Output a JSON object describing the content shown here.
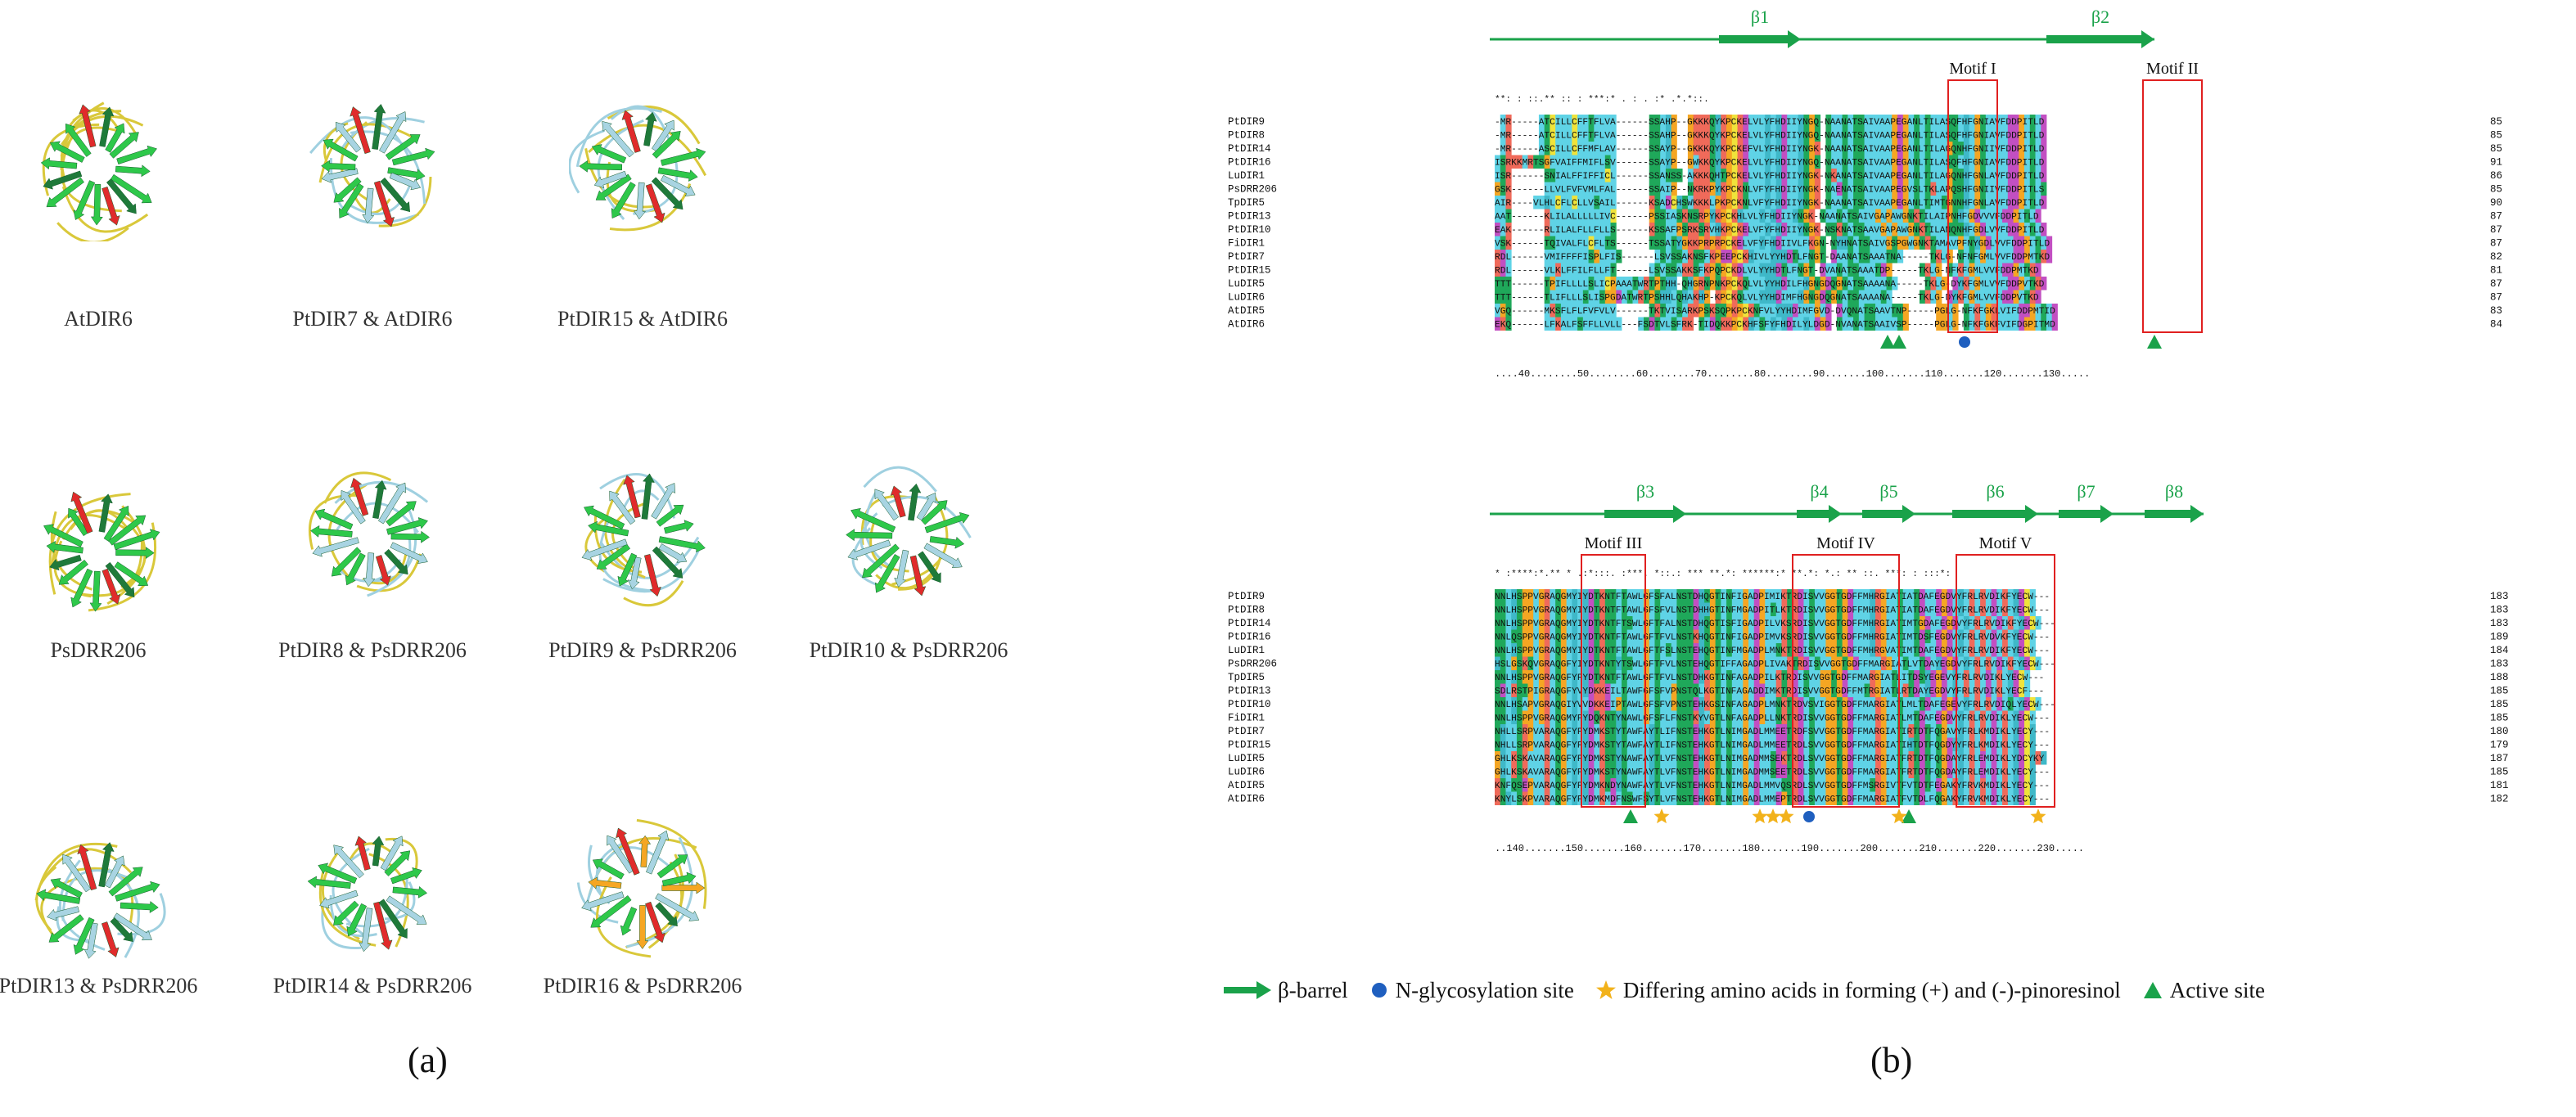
{
  "panel_a": {
    "letter": "(a)",
    "structures": [
      {
        "label": "AtDIR6",
        "palette": "single"
      },
      {
        "label": "PtDIR7 & AtDIR6",
        "palette": "overlay"
      },
      {
        "label": "PtDIR15 & AtDIR6",
        "palette": "overlay"
      },
      {
        "label": "PsDRR206",
        "palette": "single"
      },
      {
        "label": "PtDIR8 & PsDRR206",
        "palette": "overlay"
      },
      {
        "label": "PtDIR9 & PsDRR206",
        "palette": "overlay"
      },
      {
        "label": "PtDIR10 & PsDRR206",
        "palette": "overlay"
      },
      {
        "label": "PtDIR13 & PsDRR206",
        "palette": "overlay"
      },
      {
        "label": "PtDIR14 & PsDRR206",
        "palette": "overlay"
      },
      {
        "label": "PtDIR16 & PsDRR206",
        "palette": "orange"
      }
    ]
  },
  "panel_b": {
    "letter": "(b)",
    "block1": {
      "strands": [
        {
          "name": "β1"
        },
        {
          "name": "β2"
        }
      ],
      "motifs": [
        {
          "name": "Motif I"
        },
        {
          "name": "Motif II"
        }
      ],
      "conservation": "**:  : ::.** ::      :   ***:*    .   :   .  :*  .*.*::.",
      "rows": [
        {
          "name": "PtDIR9",
          "seq": "-MR-----ATCILLCFFTFLVA------SSAHP--GKKKQYKPCKELVLYFHDIIYNGQ-NAANATSAIVAAPEGANLTILASQFHFGNIAVFDDPITLD",
          "end": "85"
        },
        {
          "name": "PtDIR8",
          "seq": "-MR-----ATCILLCFFTFLVA------SSAHP--GKKKQYKPCKELVLYFHDIIYNGQ-NAANATSAIVAAPEGANLTILASQFHFGNIAVFDDPITLD",
          "end": "85"
        },
        {
          "name": "PtDIR14",
          "seq": "-MR-----ASCILLCFFMFLAV------SSAYP--GKKKQYKPCKEFVLYFHDIIYNGK-NAANATSAIVAAPEGANLTILAGQNHFGNIIVFDDPITLD",
          "end": "85"
        },
        {
          "name": "PtDIR16",
          "seq": "ISRKKMRTSGFVAIFFMIFLSV------SSAYP--GWKKQYKPCKELVLYFHDIIYNGQ-NAANATSAIVAAPEGANLTILASQFHFGNIAVFDDPITLD",
          "end": "91"
        },
        {
          "name": "LuDIR1",
          "seq": "ISR------SNIALFFIFFICL------SSANSS-AKKKQHTPCKELVLYFHDIIYNGK-NKANATSAIVAAPEGANLTILAGQNHFGNLAVFDDPITLD",
          "end": "86"
        },
        {
          "name": "PsDRR206",
          "seq": "GSK------LLVLFVFVMLFAL------SSAIP--NKRKPYKPCKNLVFYFHDIIYNGK-NAENATSAIVAAPEGVSLTKLAPQSHFGNIIVFDDPITLS",
          "end": "85"
        },
        {
          "name": "TpDIR5",
          "seq": "AIR----VLHLCFLCLLVSAIL------KSADCHSWKKKLPKPCKNLVFYFHDIIYNGK-NAANATSAIVAAPEGANLTIMTGNNHFGNLAVFDDPITLD",
          "end": "90"
        },
        {
          "name": "PtDIR13",
          "seq": "AAT------KLILALLLLLIVC------PSSIASKNSRPYKPCKHLVLYFHDIIYNGK-NAANATSAIVGAPAWGNKTILAIPNHFGDVVVFDDPITLD",
          "end": "87"
        },
        {
          "name": "PtDIR10",
          "seq": "EAK------RLILALFLLFLLS------KSSAFPSRKSRVHKPCKELVFYFHDIIYNGK-NSKNATSAAVGAPAWGNKTILANQNHFGDLVVFDDPITLD",
          "end": "87"
        },
        {
          "name": "FiDIR1",
          "seq": "VSK------TQIVALFLCFLTS------TSSATYGKKPRPRPCKELVFYFHDIIVLFKGN-NYHNATSAIVGSPGWGNKTAMAVPFNYGDLVVFDDPITLD",
          "end": "87"
        },
        {
          "name": "PtDIR7",
          "seq": "RDL------VMIFFFFISPLFIS------LSVSSAKNSFKPEEPCKHIVLYYHDTLFNGT-DAANATSAAATNA-----TKLG-NFNFGMLVVFDDPMTKD",
          "end": "82"
        },
        {
          "name": "PtDIR15",
          "seq": "RDL------VLKLFFILFLLFT------LSVSSAKKSFKPQPCKDLVLYYHDTLFNGT-DVANATSAAATDP-----TKLG-NFKFGMLVVFDDPMTKD",
          "end": "81"
        },
        {
          "name": "LuDIR5",
          "seq": "TTT------TPIFLLLLSLICPAAATWRTPTHH-QHGRNPNKPCKQLVLYYHDILFHGNGDQGNATSAAAANA-----TKLG-DYKFGMLVVFDDPVTKD",
          "end": "87"
        },
        {
          "name": "LuDIR6",
          "seq": "TTT------TLIFLLLSLISPGDATWRTPSHHLQHAKHP-KPCKQLVLYYHDIMFHGNGDQGNATSAAAANA-----TKLG-DYKFGMLVVFDDPVTKD",
          "end": "87"
        },
        {
          "name": "AtDIR5",
          "seq": "VGQ------MKSFLFLFVFVLV------TKTVISARKPSKSQPKPCKNFVLYYHDIMFGVD-DVQNATSAAVTNP-----PGLG-NFKFGKLVIFDDPMTID",
          "end": "83"
        },
        {
          "name": "AtDIR6",
          "seq": "EKQ------LFKALFSFFLLVLL---FSDTVLSFRK-TIDQKKPCKHFSFYFHDILYLDGD-NVANATSAAIVSP-----PGLG-NFKFGKFVIFDGPITMD",
          "end": "84"
        }
      ],
      "ruler": "....40........50........60........70........80........90.......100.......110.......120.......130....."
    },
    "block2": {
      "strands": [
        {
          "name": "β3"
        },
        {
          "name": "β4"
        },
        {
          "name": "β5"
        },
        {
          "name": "β6"
        },
        {
          "name": "β7"
        },
        {
          "name": "β8"
        }
      ],
      "motifs": [
        {
          "name": "Motif III"
        },
        {
          "name": "Motif IV"
        },
        {
          "name": "Motif V"
        }
      ],
      "conservation": "*   :****:*.** *    .:*:::.    :***.  *::.:  ***     **.*:  ******:* **.*: *.: **  ::.      ***: :  :::*:",
      "rows": [
        {
          "name": "PtDIR9",
          "seq": "NNLHSPPVGRAQGMYIYDTKNTFTAWLGFSFALNSTDHQGTINFIGADPIMIKTRDISVVGGTGDFFMHRGIATIATDAFEGDVYFRLRVDIKFYECW---",
          "end": "183"
        },
        {
          "name": "PtDIR8",
          "seq": "NNLHSPPVGRAQGMYIYDTKNTFTAWLGFSFVLNSTDHHGTINFMGADPITLKTRDISVVGGTGDFFMHRGIATIATDAFEGDVYFRLRVDIKFYECW---",
          "end": "183"
        },
        {
          "name": "PtDIR14",
          "seq": "NNLHSPPVGRAQGMYIYDTKNTFTSWLGFTFALNSTDHQGTISFIGADPILVKSRDISVVGGTGDFFMHRGIATIMTGDAFEGDVYFRLRVDIKFYECW---",
          "end": "183"
        },
        {
          "name": "PtDIR16",
          "seq": "NNLQSPPVGRAQGMYIYDTKNTFTAWLGFTFVLNSTKHQGTINFIGADPIMVKSRDISVVGGTGDFFMHRGIATIMTDSFEGDVYFRLRVDVKFYECW---",
          "end": "189"
        },
        {
          "name": "LuDIR1",
          "seq": "NNLHSPPVGRAQGMYIYDTKNTFTAWLGFTFSLNSTEHQGTINFMGADPLMNKTRDISVVGGTGDFFMHRGVATIMTDAFEGDVYFRLRVDIKFYECW---",
          "end": "184"
        },
        {
          "name": "PsDRR206",
          "seq": "HSLGSKQVGRAQGFYIYDTKNTYTSWLGFTFVLNSTEHQGTIFFAGADPLIVAKTRDISVVGGTGDFFMARGIATLVTDAYEGDVYFRLRVDIKFYECW---",
          "end": "183"
        },
        {
          "name": "TpDIR5",
          "seq": "NNLHSPPVGRAQGFYFYDTKNTFTAWLGFTFVLNSTDHKGTINFAGADPILKTRDISVVGGTGDFFMARGIATLITDSYEGEVYFRLRVDIKLYECW---",
          "end": "188"
        },
        {
          "name": "PtDIR13",
          "seq": "SDLRSTPIGRAQGFYVYDKKEILTAWFGFSFVPNSTQLKGTINFAGADDIMKTRDISVVGGTGDFFMTRGIATLRTDAYEGDVYFRLRVDIKLYECF---",
          "end": "185"
        },
        {
          "name": "PtDIR10",
          "seq": "NNLHSAPVGRAQGIYVVDKKEIPTAWLGFSFVPNSTEHKGSINFAGADPLMNKTRDVSVIGGTGDFFMARGIATLMLTDAFEGEVYFRLRVDIQLYECW---",
          "end": "185"
        },
        {
          "name": "FiDIR1",
          "seq": "NNLHSPPVGRAQGMYFYDQKNTYNAWLGFSFLFNSTKYVGTLNFAGADPLLNKTRDISVVGGTGDFFMARGIATLMTDAFEGDVYFRLRVDIKLYECW---",
          "end": "185"
        },
        {
          "name": "PtDIR7",
          "seq": "NHLLSRPVARAQGFYFYDMKSTYTAWFAYTLIFNSTEHKGTLNIMGADLMMEETRDFSVVGGTGDFFMARGIATIRTDTFQGAVYFRLKMDIKLYECY---",
          "end": "180"
        },
        {
          "name": "PtDIR15",
          "seq": "NHLLSRPVARAQGFYFYDMKSTYTAWFAYTLIFNSTEHKGTLNIMGADLMMEETRDLSVVGGTGDFFMARGIATIHTDTFQGDYYFRLKMDIKLYECY---",
          "end": "179"
        },
        {
          "name": "LuDIR5",
          "seq": "GHLKSKAVARAQGFYFYDMKSTYNAWFAYTLVFNSTEHKGTLNIMGADMMSEKTRDLSVVGGTGDFFMARGIATFRTDTFQGDAYFRLEMDIKLYDCYKY",
          "end": "187"
        },
        {
          "name": "LuDIR6",
          "seq": "GHLKSKAVARAQGFYFYDMKSTYNAWFAYTLVFNSTEHKGTLNIMGADMMSEETRDLSVVGGTGDFFMARGIATFRTDTFQGDAYFRLEMDIKLYECY---",
          "end": "185"
        },
        {
          "name": "AtDIR5",
          "seq": "KNFQSEPVARAQGFYFYDMKNDYNAWFAYTLVFNSTEHKGTLNIMGADLMMVQSRDLSVVGGTGDFFMSRGIVTFVTDTFEGAKYFRVKMDIKLYECY---",
          "end": "181"
        },
        {
          "name": "AtDIR6",
          "seq": "KNYLSKPVARAQGFYFYDMKMDFNSWFSYTLVFNSTEHKGTLNIMGADLMMEPTRDLSVVGGTGDFFMARGIATFVTDLFQGAKYFRVKMDIKLYECY---",
          "end": "182"
        }
      ],
      "ruler": "..140.......150.......160.......170.......180.......190.......200.......210.......220.......230....."
    },
    "legend": {
      "beta_barrel": "β-barrel",
      "glyco": "N-glycosylation site",
      "differing": "Differing amino acids in forming (+) and (-)-pinoresinol",
      "active": "Active site"
    },
    "colors": {
      "cyan": "#5fd3e6",
      "green": "#1fa85a",
      "magenta": "#c24fc2",
      "yellow": "#f0e33a",
      "orange": "#f5a623",
      "red": "#f06a5a",
      "motif_box": "#e02020",
      "strand": "#1aa24a",
      "glyco": "#1f5fbf",
      "star": "#f2b21b",
      "triangle": "#1aa24a"
    }
  }
}
